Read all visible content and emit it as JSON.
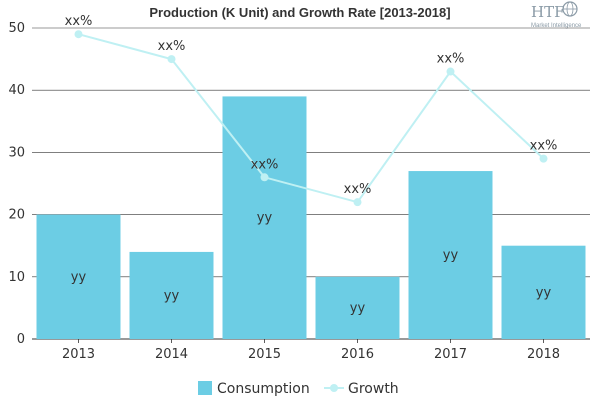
{
  "chart_data": {
    "type": "bar",
    "title": "Production (K Unit) and Growth Rate [2013-2018]",
    "categories": [
      "2013",
      "2014",
      "2015",
      "2016",
      "2017",
      "2018"
    ],
    "series": [
      {
        "name": "Consumption",
        "type": "bar",
        "values": [
          20,
          14,
          39,
          10,
          27,
          15
        ],
        "labels": [
          "yy",
          "yy",
          "yy",
          "yy",
          "yy",
          "yy"
        ]
      },
      {
        "name": "Growth",
        "type": "line",
        "values": [
          49,
          45,
          26,
          22,
          43,
          29
        ],
        "labels": [
          "xx%",
          "xx%",
          "xx%",
          "xx%",
          "xx%",
          "xx%"
        ]
      }
    ],
    "ylim": [
      0,
      50
    ],
    "yticks": [
      0,
      10,
      20,
      30,
      40,
      50
    ],
    "grid": true,
    "legend_position": "bottom",
    "colors": {
      "bar": "#6ccde4",
      "line": "#bff0f3",
      "grid": "#333333",
      "text": "#333333"
    }
  },
  "logo": {
    "mark": "HTF",
    "subtitle": "Market Intelligence"
  }
}
